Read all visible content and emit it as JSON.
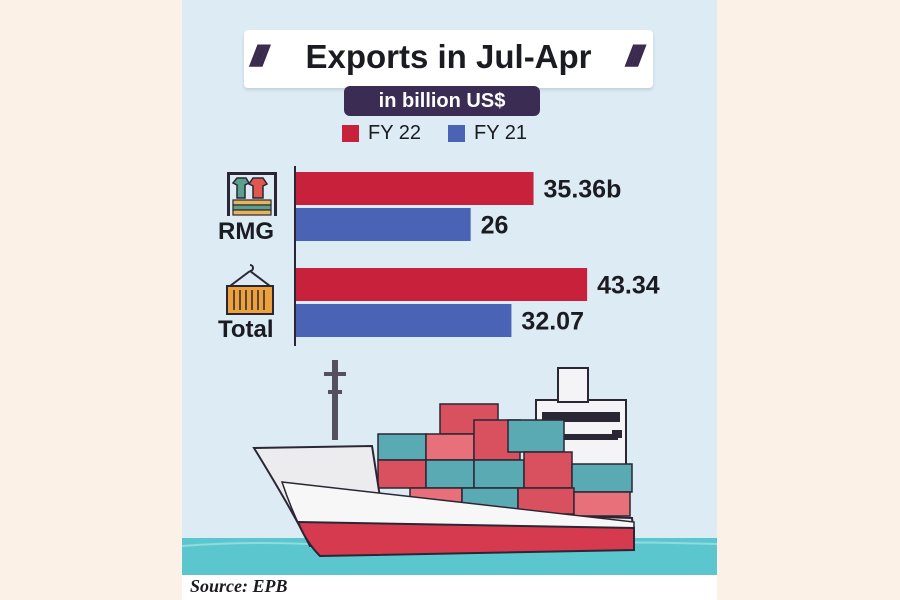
{
  "colors": {
    "fy22": "#c8213b",
    "fy21": "#4a63b4",
    "background": "#dcebf4",
    "pill": "#3a2c52"
  },
  "chart_data": {
    "type": "bar",
    "orientation": "horizontal",
    "title": "Exports in Jul-Apr",
    "subtitle": "in billion US$",
    "categories": [
      "RMG",
      "Total"
    ],
    "series": [
      {
        "name": "FY 22",
        "values": [
          35.36,
          43.34
        ],
        "labels": [
          "35.36b",
          "43.34"
        ]
      },
      {
        "name": "FY 21",
        "values": [
          26,
          32.07
        ],
        "labels": [
          "26",
          "32.07"
        ]
      }
    ],
    "xlim": [
      0,
      46
    ],
    "grid": false,
    "legend": "top"
  },
  "icons": [
    "clothes-rack-icon",
    "container-crane-icon",
    "cargo-ship-illustration"
  ],
  "source": "Source: EPB"
}
